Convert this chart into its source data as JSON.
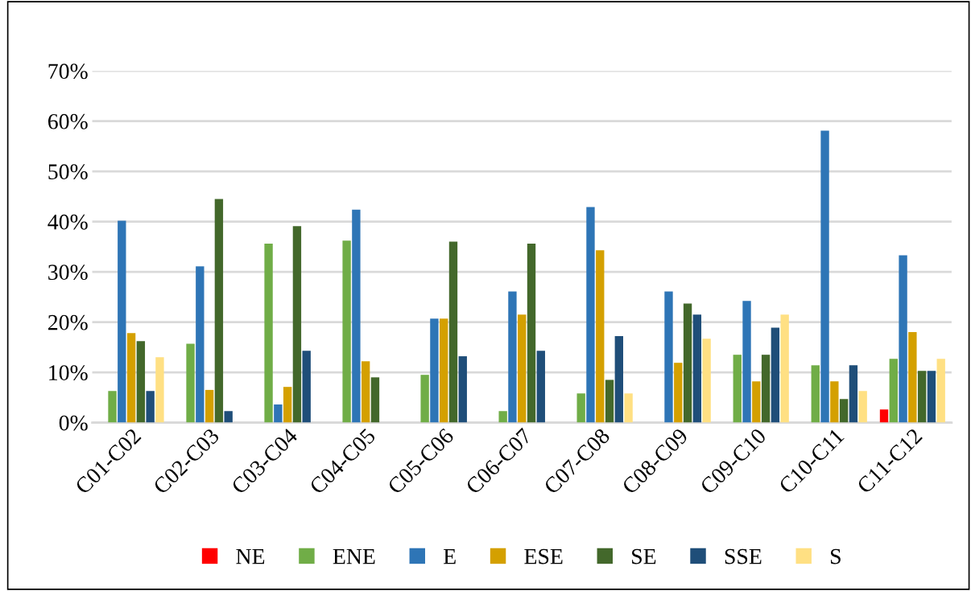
{
  "chart_data": {
    "type": "bar",
    "categories": [
      "C01-C02",
      "C02-C03",
      "C03-C04",
      "C04-C05",
      "C05-C06",
      "C06-C07",
      "C07-C08",
      "C08-C09",
      "C09-C10",
      "C10-C11",
      "C11-C12"
    ],
    "series": [
      {
        "name": "NE",
        "color": "#ff0000",
        "values": [
          null,
          null,
          null,
          null,
          null,
          null,
          null,
          null,
          null,
          null,
          2.6
        ]
      },
      {
        "name": "ENE",
        "color": "#70ad47",
        "values": [
          6.3,
          15.7,
          35.6,
          36.2,
          9.5,
          2.3,
          5.8,
          null,
          13.5,
          11.4,
          12.7
        ]
      },
      {
        "name": "E",
        "color": "#2e75b6",
        "values": [
          40.2,
          31.1,
          3.6,
          42.4,
          20.7,
          26.1,
          42.9,
          26.1,
          24.2,
          58.1,
          33.3
        ]
      },
      {
        "name": "ESE",
        "color": "#d4a000",
        "values": [
          17.8,
          6.5,
          7.1,
          12.2,
          20.7,
          21.5,
          34.3,
          11.9,
          8.2,
          8.2,
          18.0
        ]
      },
      {
        "name": "SE",
        "color": "#43682b",
        "values": [
          16.2,
          44.5,
          39.1,
          9.0,
          36.0,
          35.6,
          8.5,
          23.7,
          13.5,
          4.7,
          10.3
        ]
      },
      {
        "name": "SSE",
        "color": "#1f4e79",
        "values": [
          6.3,
          2.3,
          14.3,
          null,
          13.2,
          14.3,
          17.2,
          21.5,
          18.9,
          11.4,
          10.3
        ]
      },
      {
        "name": "S",
        "color": "#ffe083",
        "values": [
          13.0,
          null,
          null,
          null,
          null,
          null,
          5.8,
          16.7,
          21.5,
          6.3,
          12.7
        ]
      }
    ],
    "ylim": [
      0,
      70
    ],
    "yticks": [
      {
        "value": 0,
        "label": "0%"
      },
      {
        "value": 10,
        "label": "10%"
      },
      {
        "value": 20,
        "label": "20%"
      },
      {
        "value": 30,
        "label": "30%"
      },
      {
        "value": 40,
        "label": "40%"
      },
      {
        "value": 50,
        "label": "50%"
      },
      {
        "value": 60,
        "label": "60%"
      },
      {
        "value": 70,
        "label": "70%"
      }
    ],
    "grid": "y",
    "legend": "bottom"
  }
}
